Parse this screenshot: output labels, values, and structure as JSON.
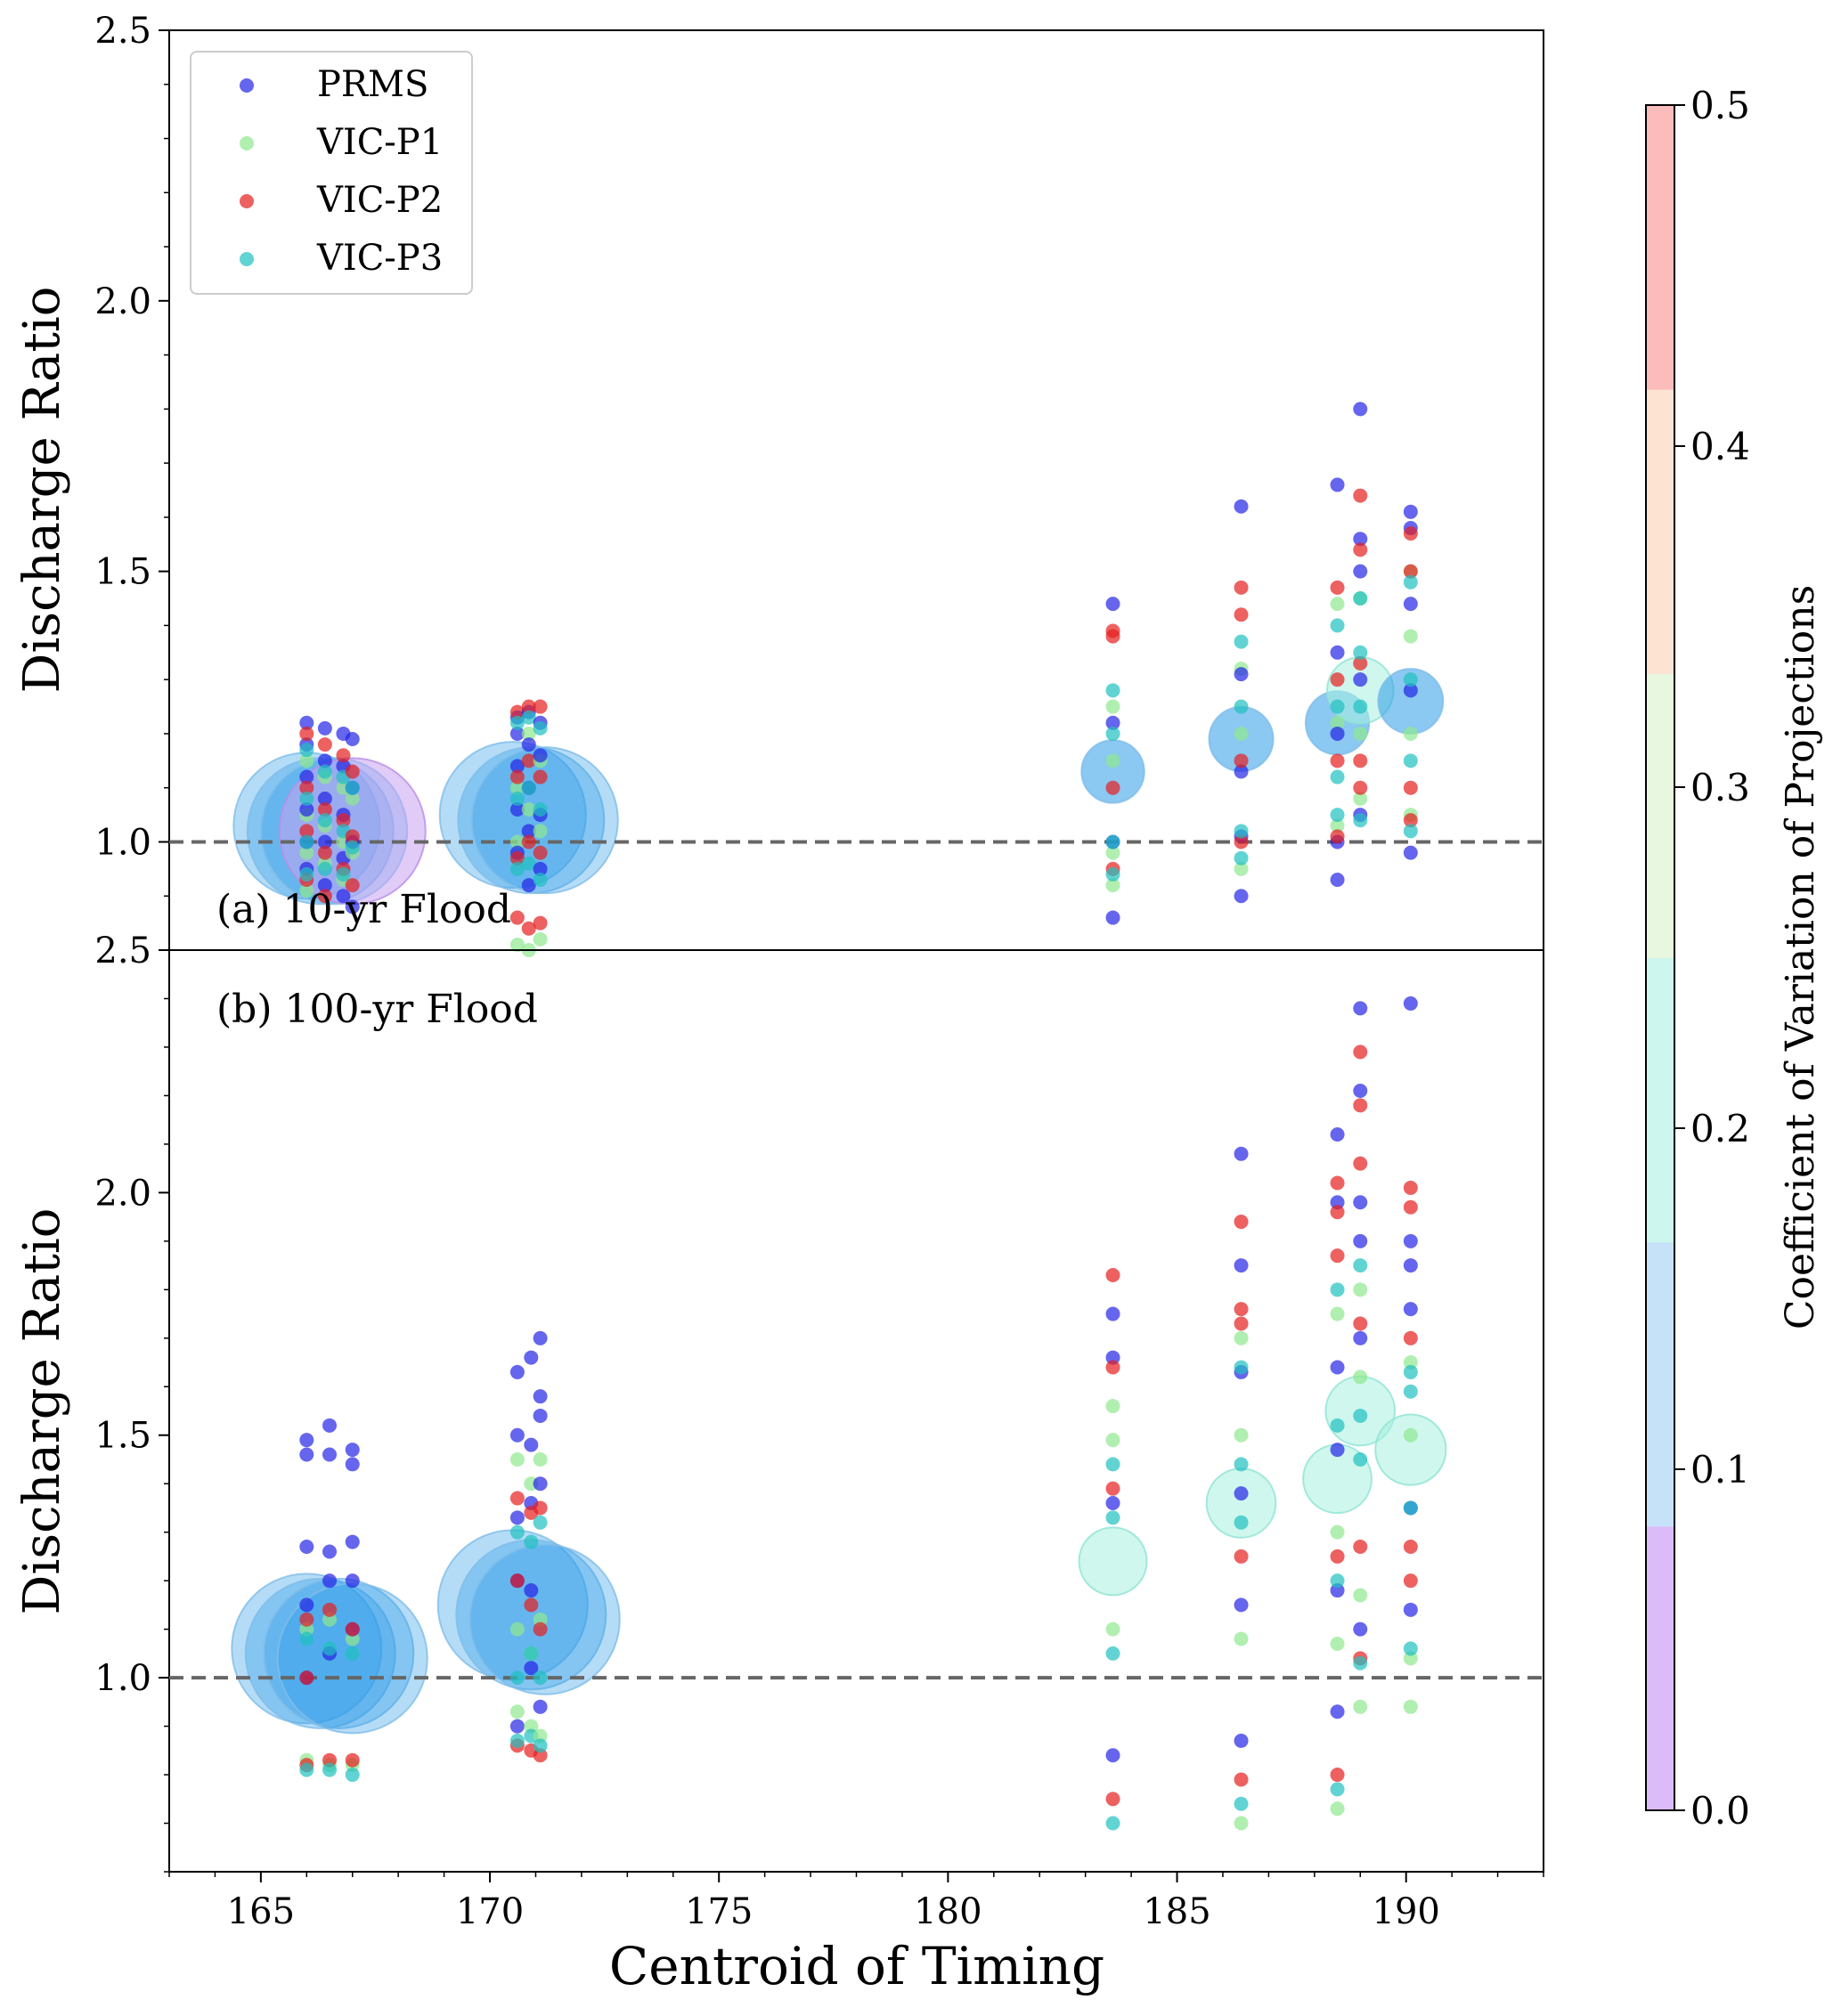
{
  "chart_data": [
    {
      "type": "scatter",
      "panel_label": "(a) 10-yr Flood",
      "ylabel": "Discharge Ratio",
      "xlabel": "Centroid of Timing",
      "xlim": [
        163,
        193
      ],
      "ylim": [
        0.8,
        2.5
      ],
      "xticks": [
        165,
        170,
        175,
        180,
        185,
        190
      ],
      "yticks": [
        1.0,
        1.5,
        2.0,
        2.5
      ],
      "ytick_labels": [
        "1.0",
        "1.5",
        "2.0",
        "2.5"
      ],
      "reference_line": 1.0,
      "legend": {
        "position": "top-left",
        "entries": [
          "PRMS",
          "VIC-P1",
          "VIC-P2",
          "VIC-P3"
        ]
      },
      "series_colors": {
        "PRMS": "#2424e6",
        "VIC-P1": "#8fe88f",
        "VIC-P2": "#e61e1e",
        "VIC-P3": "#20c0c0"
      },
      "bubbles": [
        {
          "x": 166.0,
          "y": 1.03,
          "cv": 0.13
        },
        {
          "x": 166.3,
          "y": 1.02,
          "cv": 0.14
        },
        {
          "x": 166.6,
          "y": 1.02,
          "cv": 0.12
        },
        {
          "x": 167.0,
          "y": 1.02,
          "cv": 0.05
        },
        {
          "x": 170.5,
          "y": 1.05,
          "cv": 0.12
        },
        {
          "x": 170.9,
          "y": 1.04,
          "cv": 0.14
        },
        {
          "x": 171.2,
          "y": 1.04,
          "cv": 0.13
        },
        {
          "x": 183.6,
          "y": 1.13,
          "cv": 0.13
        },
        {
          "x": 186.4,
          "y": 1.19,
          "cv": 0.15
        },
        {
          "x": 188.5,
          "y": 1.22,
          "cv": 0.14
        },
        {
          "x": 189.0,
          "y": 1.28,
          "cv": 0.18
        },
        {
          "x": 190.1,
          "y": 1.26,
          "cv": 0.16
        }
      ],
      "point_groups": [
        {
          "x": 166.0,
          "PRMS": [
            1.22,
            1.18,
            1.12,
            1.06,
            1.0,
            0.95
          ],
          "VIC-P1": [
            1.15,
            1.05,
            0.98,
            0.91
          ],
          "VIC-P2": [
            1.2,
            1.1,
            1.02,
            0.93
          ],
          "VIC-P3": [
            1.17,
            1.08,
            1.0,
            0.94
          ]
        },
        {
          "x": 166.4,
          "PRMS": [
            1.21,
            1.15,
            1.08,
            1.0,
            0.92
          ],
          "VIC-P1": [
            1.12,
            1.03,
            0.96
          ],
          "VIC-P2": [
            1.18,
            1.06,
            0.98,
            0.9
          ],
          "VIC-P3": [
            1.13,
            1.04,
            0.95
          ]
        },
        {
          "x": 166.8,
          "PRMS": [
            1.2,
            1.14,
            1.05,
            0.97,
            0.9
          ],
          "VIC-P1": [
            1.1,
            1.0,
            0.93
          ],
          "VIC-P2": [
            1.16,
            1.04,
            0.95
          ],
          "VIC-P3": [
            1.12,
            1.02,
            0.94
          ]
        },
        {
          "x": 167.0,
          "PRMS": [
            1.19,
            1.1,
            1.0,
            0.88
          ],
          "VIC-P1": [
            1.08,
            0.98
          ],
          "VIC-P2": [
            1.13,
            1.01,
            0.92
          ],
          "VIC-P3": [
            1.1,
            0.99
          ]
        },
        {
          "x": 170.6,
          "PRMS": [
            1.23,
            1.2,
            1.14,
            1.06,
            0.98
          ],
          "VIC-P1": [
            1.1,
            1.0,
            0.81
          ],
          "VIC-P2": [
            1.24,
            1.12,
            0.97,
            0.86
          ],
          "VIC-P3": [
            1.22,
            1.08,
            0.95
          ]
        },
        {
          "x": 170.85,
          "PRMS": [
            1.24,
            1.18,
            1.1,
            1.02,
            0.92
          ],
          "VIC-P1": [
            1.2,
            1.06,
            0.8
          ],
          "VIC-P2": [
            1.25,
            1.15,
            1.0,
            0.84
          ],
          "VIC-P3": [
            1.23,
            1.1,
            0.96
          ]
        },
        {
          "x": 171.1,
          "PRMS": [
            1.22,
            1.16,
            1.05,
            0.95
          ],
          "VIC-P1": [
            1.15,
            1.02,
            0.82
          ],
          "VIC-P2": [
            1.25,
            1.12,
            0.98,
            0.85
          ],
          "VIC-P3": [
            1.21,
            1.06,
            0.93
          ]
        },
        {
          "x": 183.6,
          "PRMS": [
            1.44,
            1.22,
            1.0,
            0.86
          ],
          "VIC-P1": [
            1.25,
            1.15,
            0.98,
            0.92
          ],
          "VIC-P2": [
            1.39,
            1.38,
            1.1,
            0.95
          ],
          "VIC-P3": [
            1.28,
            1.2,
            1.0,
            0.94
          ]
        },
        {
          "x": 186.4,
          "PRMS": [
            1.62,
            1.31,
            1.13,
            1.01,
            0.9
          ],
          "VIC-P1": [
            1.32,
            1.2,
            0.95
          ],
          "VIC-P2": [
            1.47,
            1.42,
            1.15,
            1.0
          ],
          "VIC-P3": [
            1.37,
            1.25,
            1.02,
            0.97
          ]
        },
        {
          "x": 188.5,
          "PRMS": [
            1.66,
            1.35,
            1.2,
            1.0,
            0.93
          ],
          "VIC-P1": [
            1.44,
            1.22,
            1.03
          ],
          "VIC-P2": [
            1.47,
            1.3,
            1.15,
            1.01
          ],
          "VIC-P3": [
            1.4,
            1.25,
            1.12,
            1.05
          ]
        },
        {
          "x": 189.0,
          "PRMS": [
            1.8,
            1.56,
            1.5,
            1.3,
            1.05
          ],
          "VIC-P1": [
            1.45,
            1.2,
            1.08
          ],
          "VIC-P2": [
            1.64,
            1.54,
            1.33,
            1.15,
            1.1
          ],
          "VIC-P3": [
            1.45,
            1.35,
            1.25,
            1.04
          ]
        },
        {
          "x": 190.1,
          "PRMS": [
            1.61,
            1.58,
            1.44,
            1.28,
            0.98
          ],
          "VIC-P1": [
            1.5,
            1.38,
            1.2,
            1.05
          ],
          "VIC-P2": [
            1.57,
            1.5,
            1.1,
            1.04
          ],
          "VIC-P3": [
            1.48,
            1.3,
            1.15,
            1.02
          ]
        }
      ]
    },
    {
      "type": "scatter",
      "panel_label": "(b) 100-yr Flood",
      "ylabel": "Discharge Ratio",
      "xlabel": "Centroid of Timing",
      "xlim": [
        163,
        193
      ],
      "ylim": [
        0.6,
        2.5
      ],
      "xticks": [
        165,
        170,
        175,
        180,
        185,
        190
      ],
      "yticks": [
        1.0,
        1.5,
        2.0,
        2.5
      ],
      "ytick_labels": [
        "1.0",
        "1.5",
        "2.0",
        "2.5"
      ],
      "reference_line": 1.0,
      "bubbles": [
        {
          "x": 166.0,
          "y": 1.06,
          "cv": 0.13
        },
        {
          "x": 166.3,
          "y": 1.05,
          "cv": 0.14
        },
        {
          "x": 166.7,
          "y": 1.05,
          "cv": 0.13
        },
        {
          "x": 167.0,
          "y": 1.04,
          "cv": 0.12
        },
        {
          "x": 170.5,
          "y": 1.15,
          "cv": 0.12
        },
        {
          "x": 170.9,
          "y": 1.13,
          "cv": 0.14
        },
        {
          "x": 171.2,
          "y": 1.12,
          "cv": 0.13
        },
        {
          "x": 183.6,
          "y": 1.24,
          "cv": 0.2
        },
        {
          "x": 186.4,
          "y": 1.36,
          "cv": 0.22
        },
        {
          "x": 188.5,
          "y": 1.41,
          "cv": 0.21
        },
        {
          "x": 189.0,
          "y": 1.55,
          "cv": 0.22
        },
        {
          "x": 190.1,
          "y": 1.47,
          "cv": 0.24
        }
      ],
      "point_groups": [
        {
          "x": 166.0,
          "PRMS": [
            1.49,
            1.46,
            1.27,
            1.15,
            1.0
          ],
          "VIC-P1": [
            1.1,
            0.83
          ],
          "VIC-P2": [
            1.12,
            1.0,
            0.82
          ],
          "VIC-P3": [
            1.08,
            0.81
          ]
        },
        {
          "x": 166.5,
          "PRMS": [
            1.52,
            1.46,
            1.26,
            1.2,
            1.05
          ],
          "VIC-P1": [
            1.12,
            0.82
          ],
          "VIC-P2": [
            1.14,
            0.83
          ],
          "VIC-P3": [
            1.06,
            0.81
          ]
        },
        {
          "x": 167.0,
          "PRMS": [
            1.47,
            1.44,
            1.28,
            1.2,
            1.1
          ],
          "VIC-P1": [
            1.08,
            0.82
          ],
          "VIC-P2": [
            1.1,
            0.83
          ],
          "VIC-P3": [
            1.05,
            0.8
          ]
        },
        {
          "x": 170.6,
          "PRMS": [
            1.63,
            1.5,
            1.33,
            1.2,
            0.9
          ],
          "VIC-P1": [
            1.45,
            1.1,
            0.93
          ],
          "VIC-P2": [
            1.37,
            1.2,
            0.86
          ],
          "VIC-P3": [
            1.3,
            1.0,
            0.87
          ]
        },
        {
          "x": 170.9,
          "PRMS": [
            1.66,
            1.48,
            1.36,
            1.18,
            1.02
          ],
          "VIC-P1": [
            1.4,
            1.05,
            0.9
          ],
          "VIC-P2": [
            1.34,
            1.15,
            0.85
          ],
          "VIC-P3": [
            1.28,
            1.05,
            0.88
          ]
        },
        {
          "x": 171.1,
          "PRMS": [
            1.7,
            1.58,
            1.54,
            1.4,
            0.94
          ],
          "VIC-P1": [
            1.45,
            1.12,
            0.88
          ],
          "VIC-P2": [
            1.35,
            1.1,
            0.84
          ],
          "VIC-P3": [
            1.32,
            1.0,
            0.86
          ]
        },
        {
          "x": 183.6,
          "PRMS": [
            1.75,
            1.66,
            1.36,
            0.84
          ],
          "VIC-P1": [
            1.56,
            1.49,
            1.1
          ],
          "VIC-P2": [
            1.83,
            1.64,
            1.39,
            0.75
          ],
          "VIC-P3": [
            1.44,
            1.33,
            1.05,
            0.7
          ]
        },
        {
          "x": 186.4,
          "PRMS": [
            2.08,
            1.85,
            1.63,
            1.38,
            1.15,
            0.87
          ],
          "VIC-P1": [
            1.7,
            1.5,
            1.08,
            0.7
          ],
          "VIC-P2": [
            1.94,
            1.76,
            1.73,
            1.25,
            0.79
          ],
          "VIC-P3": [
            1.64,
            1.44,
            1.32,
            0.74
          ]
        },
        {
          "x": 188.5,
          "PRMS": [
            2.12,
            1.98,
            1.64,
            1.47,
            1.18,
            0.93
          ],
          "VIC-P1": [
            1.75,
            1.3,
            1.07,
            0.73
          ],
          "VIC-P2": [
            2.02,
            1.96,
            1.87,
            1.25,
            0.8
          ],
          "VIC-P3": [
            1.8,
            1.52,
            1.2,
            0.77
          ]
        },
        {
          "x": 189.0,
          "PRMS": [
            2.38,
            2.21,
            1.98,
            1.9,
            1.7,
            1.1
          ],
          "VIC-P1": [
            1.8,
            1.62,
            1.17,
            0.94
          ],
          "VIC-P2": [
            2.29,
            2.18,
            2.06,
            1.73,
            1.27,
            1.04
          ],
          "VIC-P3": [
            1.85,
            1.54,
            1.45,
            1.03
          ]
        },
        {
          "x": 190.1,
          "PRMS": [
            2.39,
            1.9,
            1.85,
            1.76,
            1.35,
            1.14
          ],
          "VIC-P1": [
            1.65,
            1.5,
            1.04,
            0.94
          ],
          "VIC-P2": [
            2.01,
            1.97,
            1.7,
            1.27,
            1.2
          ],
          "VIC-P3": [
            1.63,
            1.59,
            1.35,
            1.06
          ]
        }
      ]
    }
  ],
  "colorbar": {
    "label": "Coefficient of Variation of Projections",
    "range": [
      0.0,
      0.5
    ],
    "ticks": [
      "0.0",
      "0.1",
      "0.2",
      "0.3",
      "0.4",
      "0.5"
    ],
    "colors": [
      "#dcbcf8",
      "#c6e2f8",
      "#ccf6ee",
      "#e8f8e0",
      "#fde4d2",
      "#fdbcbc"
    ]
  },
  "xtick_labels": [
    "165",
    "170",
    "175",
    "180",
    "185",
    "190"
  ]
}
